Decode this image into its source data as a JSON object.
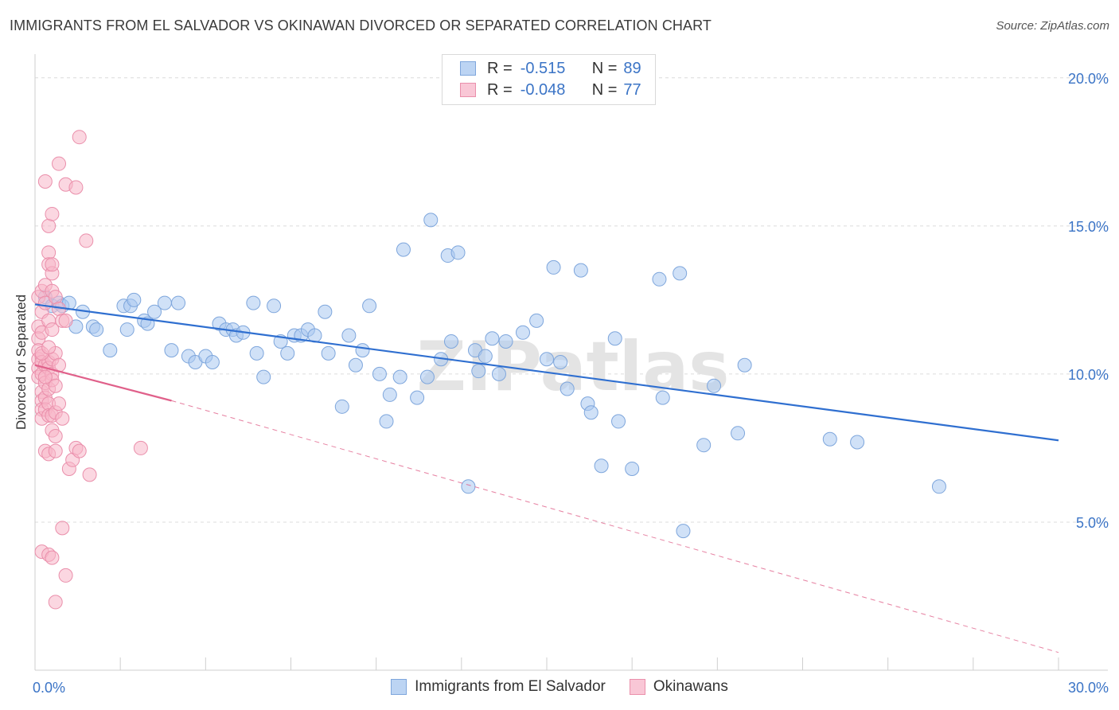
{
  "header": {
    "title": "IMMIGRANTS FROM EL SALVADOR VS OKINAWAN DIVORCED OR SEPARATED CORRELATION CHART",
    "source": "Source: ZipAtlas.com"
  },
  "watermark": "ZIPatlas",
  "legend_top": {
    "rows": [
      {
        "r_label": "R =",
        "r_value": "-0.515",
        "n_label": "N =",
        "n_value": "89"
      },
      {
        "r_label": "R =",
        "r_value": "-0.048",
        "n_label": "N =",
        "n_value": "77"
      }
    ]
  },
  "colors": {
    "blue_fill": "#aac8f0",
    "blue_stroke": "#7ea6dc",
    "blue_line": "#2f6fd0",
    "pink_fill": "#f7b6c9",
    "pink_stroke": "#ea8fab",
    "pink_line": "#e0608a",
    "tick_label": "#3b74c6",
    "grid": "#dcdcdc"
  },
  "chart_data": {
    "type": "scatter",
    "title": "IMMIGRANTS FROM EL SALVADOR VS OKINAWAN DIVORCED OR SEPARATED CORRELATION CHART",
    "xlabel": "",
    "ylabel": "Divorced or Separated",
    "xlim": [
      0,
      30
    ],
    "ylim": [
      0,
      20.8
    ],
    "x_tick_labels": [
      "0.0%",
      "30.0%"
    ],
    "y_ticks": [
      5,
      10,
      15,
      20
    ],
    "y_tick_labels": [
      "5.0%",
      "10.0%",
      "15.0%",
      "20.0%"
    ],
    "grid": "horizontal-dashed",
    "legend_position": "bottom",
    "series": [
      {
        "name": "Immigrants from El Salvador",
        "color": "#aac8f0",
        "trend": {
          "x": [
            0.0,
            30.0
          ],
          "y": [
            12.35,
            7.76
          ]
        },
        "points": [
          [
            0.3,
            12.6
          ],
          [
            0.5,
            12.3
          ],
          [
            0.7,
            12.4
          ],
          [
            0.8,
            12.3
          ],
          [
            1.0,
            12.4
          ],
          [
            1.2,
            11.6
          ],
          [
            1.4,
            12.1
          ],
          [
            1.7,
            11.6
          ],
          [
            1.8,
            11.5
          ],
          [
            2.2,
            10.8
          ],
          [
            2.6,
            12.3
          ],
          [
            2.7,
            11.5
          ],
          [
            2.8,
            12.3
          ],
          [
            2.9,
            12.5
          ],
          [
            3.2,
            11.8
          ],
          [
            3.3,
            11.7
          ],
          [
            3.5,
            12.1
          ],
          [
            3.8,
            12.4
          ],
          [
            4.0,
            10.8
          ],
          [
            4.2,
            12.4
          ],
          [
            4.5,
            10.6
          ],
          [
            4.7,
            10.4
          ],
          [
            5.0,
            10.6
          ],
          [
            5.2,
            10.4
          ],
          [
            5.4,
            11.7
          ],
          [
            5.6,
            11.5
          ],
          [
            5.8,
            11.5
          ],
          [
            5.9,
            11.3
          ],
          [
            6.1,
            11.4
          ],
          [
            6.5,
            10.7
          ],
          [
            6.4,
            12.4
          ],
          [
            6.7,
            9.9
          ],
          [
            7.0,
            12.3
          ],
          [
            7.2,
            11.1
          ],
          [
            7.4,
            10.7
          ],
          [
            7.6,
            11.3
          ],
          [
            7.8,
            11.3
          ],
          [
            8.0,
            11.5
          ],
          [
            8.2,
            11.3
          ],
          [
            8.5,
            12.1
          ],
          [
            8.6,
            10.7
          ],
          [
            9.0,
            8.9
          ],
          [
            9.2,
            11.3
          ],
          [
            9.4,
            10.3
          ],
          [
            9.6,
            10.8
          ],
          [
            9.8,
            12.3
          ],
          [
            10.1,
            10.0
          ],
          [
            10.3,
            8.4
          ],
          [
            10.4,
            9.3
          ],
          [
            10.7,
            9.9
          ],
          [
            10.8,
            14.2
          ],
          [
            11.2,
            9.2
          ],
          [
            11.5,
            9.9
          ],
          [
            11.6,
            15.2
          ],
          [
            11.9,
            10.5
          ],
          [
            12.1,
            14.0
          ],
          [
            12.2,
            11.1
          ],
          [
            12.4,
            14.1
          ],
          [
            12.7,
            6.2
          ],
          [
            12.9,
            10.8
          ],
          [
            13.0,
            10.1
          ],
          [
            13.2,
            10.6
          ],
          [
            13.4,
            11.2
          ],
          [
            13.6,
            10.0
          ],
          [
            13.8,
            11.1
          ],
          [
            14.3,
            11.4
          ],
          [
            14.7,
            11.8
          ],
          [
            15.0,
            10.5
          ],
          [
            15.2,
            13.6
          ],
          [
            15.4,
            10.4
          ],
          [
            15.6,
            9.5
          ],
          [
            16.0,
            13.5
          ],
          [
            16.2,
            9.0
          ],
          [
            16.3,
            8.7
          ],
          [
            16.6,
            6.9
          ],
          [
            17.0,
            11.2
          ],
          [
            17.1,
            8.4
          ],
          [
            17.5,
            6.8
          ],
          [
            18.3,
            13.2
          ],
          [
            18.4,
            9.2
          ],
          [
            18.9,
            13.4
          ],
          [
            19.0,
            4.7
          ],
          [
            19.6,
            7.6
          ],
          [
            19.9,
            9.6
          ],
          [
            20.6,
            8.0
          ],
          [
            20.8,
            10.3
          ],
          [
            23.3,
            7.8
          ],
          [
            24.1,
            7.7
          ],
          [
            26.5,
            6.2
          ]
        ]
      },
      {
        "name": "Okinawans",
        "color": "#f7b6c9",
        "trend": {
          "x": [
            0.0,
            4.0
          ],
          "y": [
            10.3,
            9.1
          ]
        },
        "trend_extension": {
          "x": [
            4.0,
            30.0
          ],
          "y": [
            9.1,
            0.6
          ]
        },
        "points": [
          [
            0.1,
            12.6
          ],
          [
            0.1,
            11.6
          ],
          [
            0.1,
            11.2
          ],
          [
            0.1,
            10.8
          ],
          [
            0.1,
            10.5
          ],
          [
            0.1,
            10.2
          ],
          [
            0.1,
            9.9
          ],
          [
            0.2,
            12.8
          ],
          [
            0.2,
            12.1
          ],
          [
            0.2,
            11.4
          ],
          [
            0.2,
            10.6
          ],
          [
            0.2,
            10.4
          ],
          [
            0.2,
            10.0
          ],
          [
            0.2,
            9.4
          ],
          [
            0.2,
            9.1
          ],
          [
            0.2,
            8.8
          ],
          [
            0.2,
            8.5
          ],
          [
            0.2,
            4.0
          ],
          [
            0.3,
            13.0
          ],
          [
            0.3,
            12.4
          ],
          [
            0.3,
            10.3
          ],
          [
            0.3,
            9.7
          ],
          [
            0.3,
            9.2
          ],
          [
            0.3,
            8.8
          ],
          [
            0.3,
            7.4
          ],
          [
            0.3,
            16.5
          ],
          [
            0.4,
            15.0
          ],
          [
            0.4,
            14.1
          ],
          [
            0.4,
            13.7
          ],
          [
            0.4,
            11.8
          ],
          [
            0.4,
            10.4
          ],
          [
            0.4,
            10.2
          ],
          [
            0.4,
            9.5
          ],
          [
            0.4,
            9.0
          ],
          [
            0.4,
            8.6
          ],
          [
            0.4,
            7.3
          ],
          [
            0.4,
            3.9
          ],
          [
            0.5,
            13.4
          ],
          [
            0.5,
            13.7
          ],
          [
            0.5,
            12.8
          ],
          [
            0.5,
            15.4
          ],
          [
            0.5,
            10.5
          ],
          [
            0.5,
            10.0
          ],
          [
            0.5,
            9.8
          ],
          [
            0.5,
            8.6
          ],
          [
            0.5,
            8.1
          ],
          [
            0.5,
            3.8
          ],
          [
            0.6,
            12.6
          ],
          [
            0.6,
            10.7
          ],
          [
            0.6,
            9.6
          ],
          [
            0.6,
            8.7
          ],
          [
            0.6,
            7.9
          ],
          [
            0.6,
            7.4
          ],
          [
            0.6,
            2.3
          ],
          [
            0.7,
            17.1
          ],
          [
            0.7,
            12.2
          ],
          [
            0.7,
            10.3
          ],
          [
            0.7,
            9.0
          ],
          [
            0.8,
            11.8
          ],
          [
            0.8,
            8.5
          ],
          [
            0.8,
            4.8
          ],
          [
            0.9,
            11.8
          ],
          [
            0.9,
            3.2
          ],
          [
            0.9,
            16.4
          ],
          [
            1.0,
            6.8
          ],
          [
            1.1,
            7.1
          ],
          [
            1.2,
            7.5
          ],
          [
            1.2,
            16.3
          ],
          [
            1.3,
            7.4
          ],
          [
            1.3,
            18.0
          ],
          [
            1.5,
            14.5
          ],
          [
            1.6,
            6.6
          ],
          [
            3.1,
            7.5
          ],
          [
            0.3,
            9.9
          ],
          [
            0.2,
            10.7
          ],
          [
            0.5,
            11.5
          ],
          [
            0.4,
            10.9
          ]
        ]
      }
    ]
  },
  "bottom_legend": {
    "items": [
      {
        "label": "Immigrants from El Salvador"
      },
      {
        "label": "Okinawans"
      }
    ]
  }
}
